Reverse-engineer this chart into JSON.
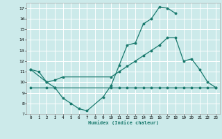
{
  "background_color": "#cceaea",
  "grid_color": "#ffffff",
  "line_color": "#1a7a6e",
  "xlabel": "Humidex (Indice chaleur)",
  "xlim": [
    -0.5,
    23.5
  ],
  "ylim": [
    7,
    17.5
  ],
  "yticks": [
    7,
    8,
    9,
    10,
    11,
    12,
    13,
    14,
    15,
    16,
    17
  ],
  "xticks": [
    0,
    1,
    2,
    3,
    4,
    5,
    6,
    7,
    8,
    9,
    10,
    11,
    12,
    13,
    14,
    15,
    16,
    17,
    18,
    19,
    20,
    21,
    22,
    23
  ],
  "curve1_x": [
    0,
    1,
    2,
    3,
    4,
    5,
    6,
    7,
    9,
    10,
    11,
    12,
    13,
    14,
    15,
    16,
    17,
    18
  ],
  "curve1_y": [
    11.2,
    11.0,
    10.0,
    9.5,
    8.5,
    8.0,
    7.5,
    7.3,
    8.6,
    9.7,
    11.6,
    13.5,
    13.7,
    15.5,
    16.0,
    17.1,
    17.0,
    16.5
  ],
  "curve2_x": [
    0,
    2,
    3,
    4,
    10,
    11,
    12,
    13,
    14,
    15,
    16,
    17,
    18,
    19,
    20,
    21,
    22,
    23
  ],
  "curve2_y": [
    11.2,
    10.0,
    10.2,
    10.5,
    10.5,
    11.0,
    11.5,
    12.0,
    12.5,
    13.0,
    13.5,
    14.2,
    14.2,
    12.0,
    12.2,
    11.2,
    10.0,
    9.5
  ],
  "curve3_x": [
    0,
    2,
    3,
    10,
    11,
    12,
    13,
    14,
    15,
    16,
    17,
    18,
    19,
    20,
    21,
    22,
    23
  ],
  "curve3_y": [
    9.5,
    9.5,
    9.5,
    9.5,
    9.5,
    9.5,
    9.5,
    9.5,
    9.5,
    9.5,
    9.5,
    9.5,
    9.5,
    9.5,
    9.5,
    9.5,
    9.5
  ]
}
